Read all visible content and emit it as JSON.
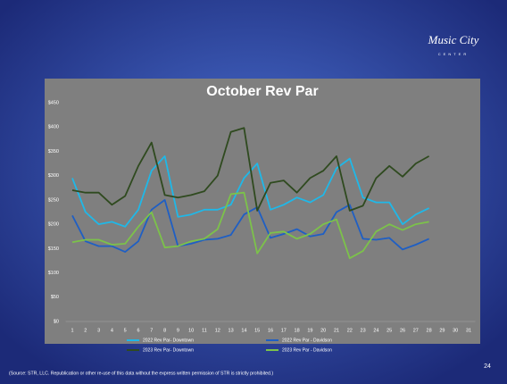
{
  "chart_data": {
    "type": "line",
    "title": "October Rev Par",
    "categories": [
      "1",
      "2",
      "3",
      "4",
      "5",
      "6",
      "7",
      "8",
      "9",
      "10",
      "11",
      "12",
      "13",
      "14",
      "15",
      "16",
      "17",
      "18",
      "19",
      "20",
      "21",
      "22",
      "23",
      "24",
      "25",
      "26",
      "27",
      "28",
      "29",
      "30",
      "31"
    ],
    "series": [
      {
        "name": "2022 Rev Par- Downtown",
        "color": "#1fb8e8",
        "values": [
          295,
          225,
          200,
          205,
          195,
          230,
          310,
          340,
          215,
          220,
          230,
          230,
          240,
          295,
          325,
          230,
          240,
          255,
          245,
          260,
          315,
          335,
          255,
          245,
          245,
          200,
          220,
          233,
          null,
          null,
          null
        ]
      },
      {
        "name": "2022 Rev Par - Davidson",
        "color": "#1f5fc4",
        "values": [
          218,
          165,
          155,
          155,
          143,
          165,
          230,
          250,
          155,
          160,
          168,
          170,
          178,
          220,
          235,
          172,
          180,
          190,
          175,
          180,
          225,
          240,
          170,
          168,
          172,
          148,
          158,
          170,
          null,
          null,
          null
        ]
      },
      {
        "name": "2023 Rev Par- Downtown",
        "color": "#2f4a1f",
        "values": [
          270,
          265,
          265,
          240,
          258,
          320,
          368,
          260,
          255,
          260,
          268,
          300,
          390,
          398,
          228,
          285,
          290,
          265,
          295,
          310,
          340,
          228,
          238,
          295,
          320,
          298,
          325,
          340,
          null,
          null,
          null
        ]
      },
      {
        "name": "2023 Rev Par - Davidson",
        "color": "#7cc24a",
        "values": [
          163,
          168,
          168,
          158,
          160,
          195,
          225,
          152,
          155,
          165,
          170,
          190,
          262,
          265,
          140,
          182,
          185,
          170,
          180,
          200,
          210,
          130,
          145,
          185,
          200,
          188,
          200,
          205,
          null,
          null,
          null
        ]
      }
    ],
    "ylim": [
      0,
      450
    ],
    "yticks": [
      {
        "value": 0,
        "label": "$0"
      },
      {
        "value": 50,
        "label": "$50"
      },
      {
        "value": 100,
        "label": "$100"
      },
      {
        "value": 150,
        "label": "$150"
      },
      {
        "value": 200,
        "label": "$200"
      },
      {
        "value": 250,
        "label": "$250"
      },
      {
        "value": 300,
        "label": "$300"
      },
      {
        "value": 350,
        "label": "$350"
      },
      {
        "value": 400,
        "label": "$400"
      },
      {
        "value": 450,
        "label": "$450"
      }
    ],
    "grid": false
  },
  "source": "(Source: STR, LLC. Republication or other re-use of this data without the express written permission of STR is strictly prohibited.)",
  "page_number": "24",
  "logo": {
    "title": "Music City",
    "subtitle": "CENTER"
  }
}
